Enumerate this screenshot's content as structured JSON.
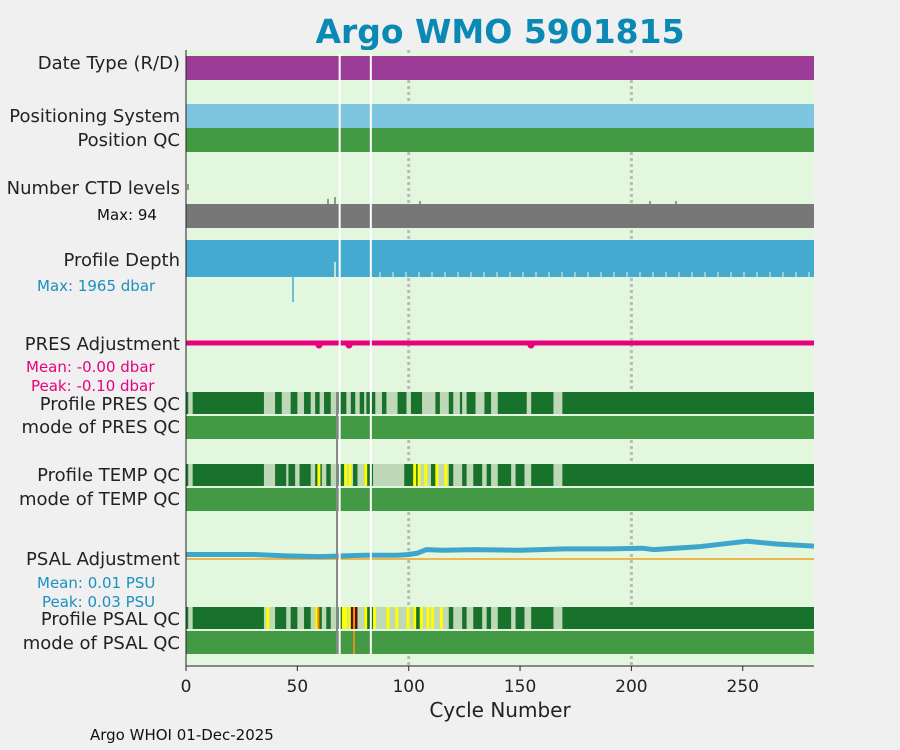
{
  "chart_data": {
    "type": "timeline-qc",
    "title": "Argo WMO 5901815",
    "xlabel": "Cycle Number",
    "xlim": [
      0,
      282
    ],
    "xticks": [
      0,
      50,
      100,
      150,
      200,
      250
    ],
    "grid_x": [
      100,
      200
    ],
    "panels": [
      {
        "label": "Date Type (R/D)",
        "color": "#9b3c96"
      },
      {
        "label": "Positioning System",
        "color": "#7ec6e0"
      },
      {
        "label": "Position QC",
        "color": "#449944"
      },
      {
        "label": "Number CTD levels",
        "sub": "Max: 94",
        "max": 94,
        "color": "#777777"
      },
      {
        "label": "Profile Depth",
        "sub": "Max: 1965 dbar",
        "max_dbar": 1965,
        "color": "#44aad0"
      },
      {
        "label": "PRES Adjustment",
        "mean": "Mean: -0.00 dbar",
        "peak": "Peak: -0.10 dbar",
        "color": "#e8007e"
      },
      {
        "label": "Profile PRES QC",
        "label2": "mode of PRES QC"
      },
      {
        "label": "Profile TEMP QC",
        "label2": "mode of TEMP QC"
      },
      {
        "label": "PSAL Adjustment",
        "mean": "Mean: 0.01 PSU",
        "peak": "Peak: 0.03 PSU",
        "color": "#3ea6cc"
      },
      {
        "label": "Profile PSAL QC",
        "label2": "mode of PSAL QC"
      }
    ],
    "missing_cycles": [
      69,
      83
    ],
    "pres_qc_light_segments": [
      [
        1,
        3
      ],
      [
        35,
        40
      ],
      [
        43,
        47
      ],
      [
        50,
        53
      ],
      [
        56,
        58
      ],
      [
        60,
        62
      ],
      [
        65,
        68
      ],
      [
        72,
        74
      ],
      [
        76,
        78
      ],
      [
        80,
        81
      ],
      [
        85,
        88
      ],
      [
        90,
        95
      ],
      [
        99,
        101
      ],
      [
        106,
        110
      ],
      [
        110,
        112
      ],
      [
        114,
        118
      ],
      [
        120,
        123
      ],
      [
        124,
        126
      ],
      [
        130,
        134
      ],
      [
        137,
        140
      ],
      [
        153,
        155
      ],
      [
        165,
        169
      ]
    ],
    "temp_qc_light_segments": [
      [
        1,
        3
      ],
      [
        35,
        40
      ],
      [
        45,
        46
      ],
      [
        49,
        51
      ],
      [
        56,
        58
      ],
      [
        61,
        63
      ],
      [
        65,
        68
      ],
      [
        72,
        75
      ],
      [
        77,
        80
      ],
      [
        84,
        98
      ],
      [
        105,
        110
      ],
      [
        112,
        118
      ],
      [
        120,
        124
      ],
      [
        126,
        129
      ],
      [
        133,
        135
      ],
      [
        137,
        140
      ],
      [
        146,
        148
      ],
      [
        152,
        155
      ],
      [
        165,
        169
      ]
    ],
    "temp_qc_yellow_marks": [
      59,
      71,
      73,
      80,
      102,
      104,
      107,
      112,
      116
    ],
    "psal_qc_light_segments": [
      [
        1,
        3
      ],
      [
        35,
        40
      ],
      [
        45,
        47
      ],
      [
        50,
        53
      ],
      [
        56,
        58
      ],
      [
        61,
        63
      ],
      [
        65,
        68
      ],
      [
        72,
        75
      ],
      [
        77,
        80
      ],
      [
        84,
        102
      ],
      [
        105,
        118
      ],
      [
        120,
        124
      ],
      [
        126,
        129
      ],
      [
        133,
        135
      ],
      [
        137,
        140
      ],
      [
        146,
        148
      ],
      [
        152,
        155
      ],
      [
        165,
        169
      ]
    ],
    "psal_qc_yellow_marks": [
      36,
      58,
      70,
      71,
      73,
      80,
      84,
      90,
      94,
      99,
      102,
      105,
      108,
      110,
      114
    ],
    "psal_qc_dark_segments": [
      [
        74,
        77
      ]
    ],
    "psal_qc_orange_marks": [
      59,
      75
    ],
    "psal_adjustment_series": [
      [
        0,
        0.005
      ],
      [
        30,
        0.005
      ],
      [
        45,
        0.003
      ],
      [
        60,
        0.002
      ],
      [
        80,
        0.004
      ],
      [
        95,
        0.004
      ],
      [
        100,
        0.005
      ],
      [
        104,
        0.007
      ],
      [
        108,
        0.012
      ],
      [
        115,
        0.011
      ],
      [
        130,
        0.012
      ],
      [
        150,
        0.011
      ],
      [
        170,
        0.013
      ],
      [
        190,
        0.013
      ],
      [
        205,
        0.014
      ],
      [
        210,
        0.012
      ],
      [
        230,
        0.016
      ],
      [
        252,
        0.024
      ],
      [
        265,
        0.02
      ],
      [
        282,
        0.017
      ]
    ]
  },
  "footer": "Argo WHOI 01-Dec-2025"
}
